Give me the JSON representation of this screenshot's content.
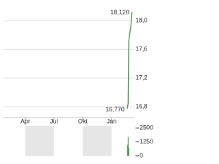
{
  "chart_data": [
    {
      "type": "line",
      "x": [
        415,
        418,
        420,
        422,
        424,
        426,
        428,
        430
      ],
      "series": [
        {
          "color": "#2e8b2e",
          "values": [
            16.77,
            16.85,
            17.72,
            17.78,
            17.85,
            17.9,
            18.0,
            18.12
          ]
        }
      ],
      "xlim": [
        20,
        437
      ],
      "ylim": [
        16.65,
        18.26
      ],
      "yticks": [
        {
          "value": 18.0,
          "label": "18,0"
        },
        {
          "value": 17.6,
          "label": "17,6"
        },
        {
          "value": 17.2,
          "label": "17,2"
        },
        {
          "value": 16.8,
          "label": "16,8"
        }
      ],
      "xticks": [
        {
          "value": 90,
          "label": "Apr"
        },
        {
          "value": 181,
          "label": "Jul"
        },
        {
          "value": 273,
          "label": "Okt"
        },
        {
          "value": 365,
          "label": "Jan"
        }
      ],
      "annotations": [
        {
          "x": 430,
          "y": 18.12,
          "label": "18,120"
        },
        {
          "x": 415,
          "y": 16.77,
          "label": "16,770"
        }
      ],
      "grid": true
    },
    {
      "type": "bar",
      "x": [
        416,
        418,
        420
      ],
      "series": [
        {
          "color": "#2e8b2e",
          "values": [
            1000,
            1700,
            700
          ]
        }
      ],
      "xlim": [
        20,
        437
      ],
      "ylim": [
        0,
        2700
      ],
      "yticks": [
        2500,
        1250,
        0
      ],
      "bands": [
        [
          90,
          181
        ],
        [
          273,
          365
        ]
      ]
    }
  ]
}
